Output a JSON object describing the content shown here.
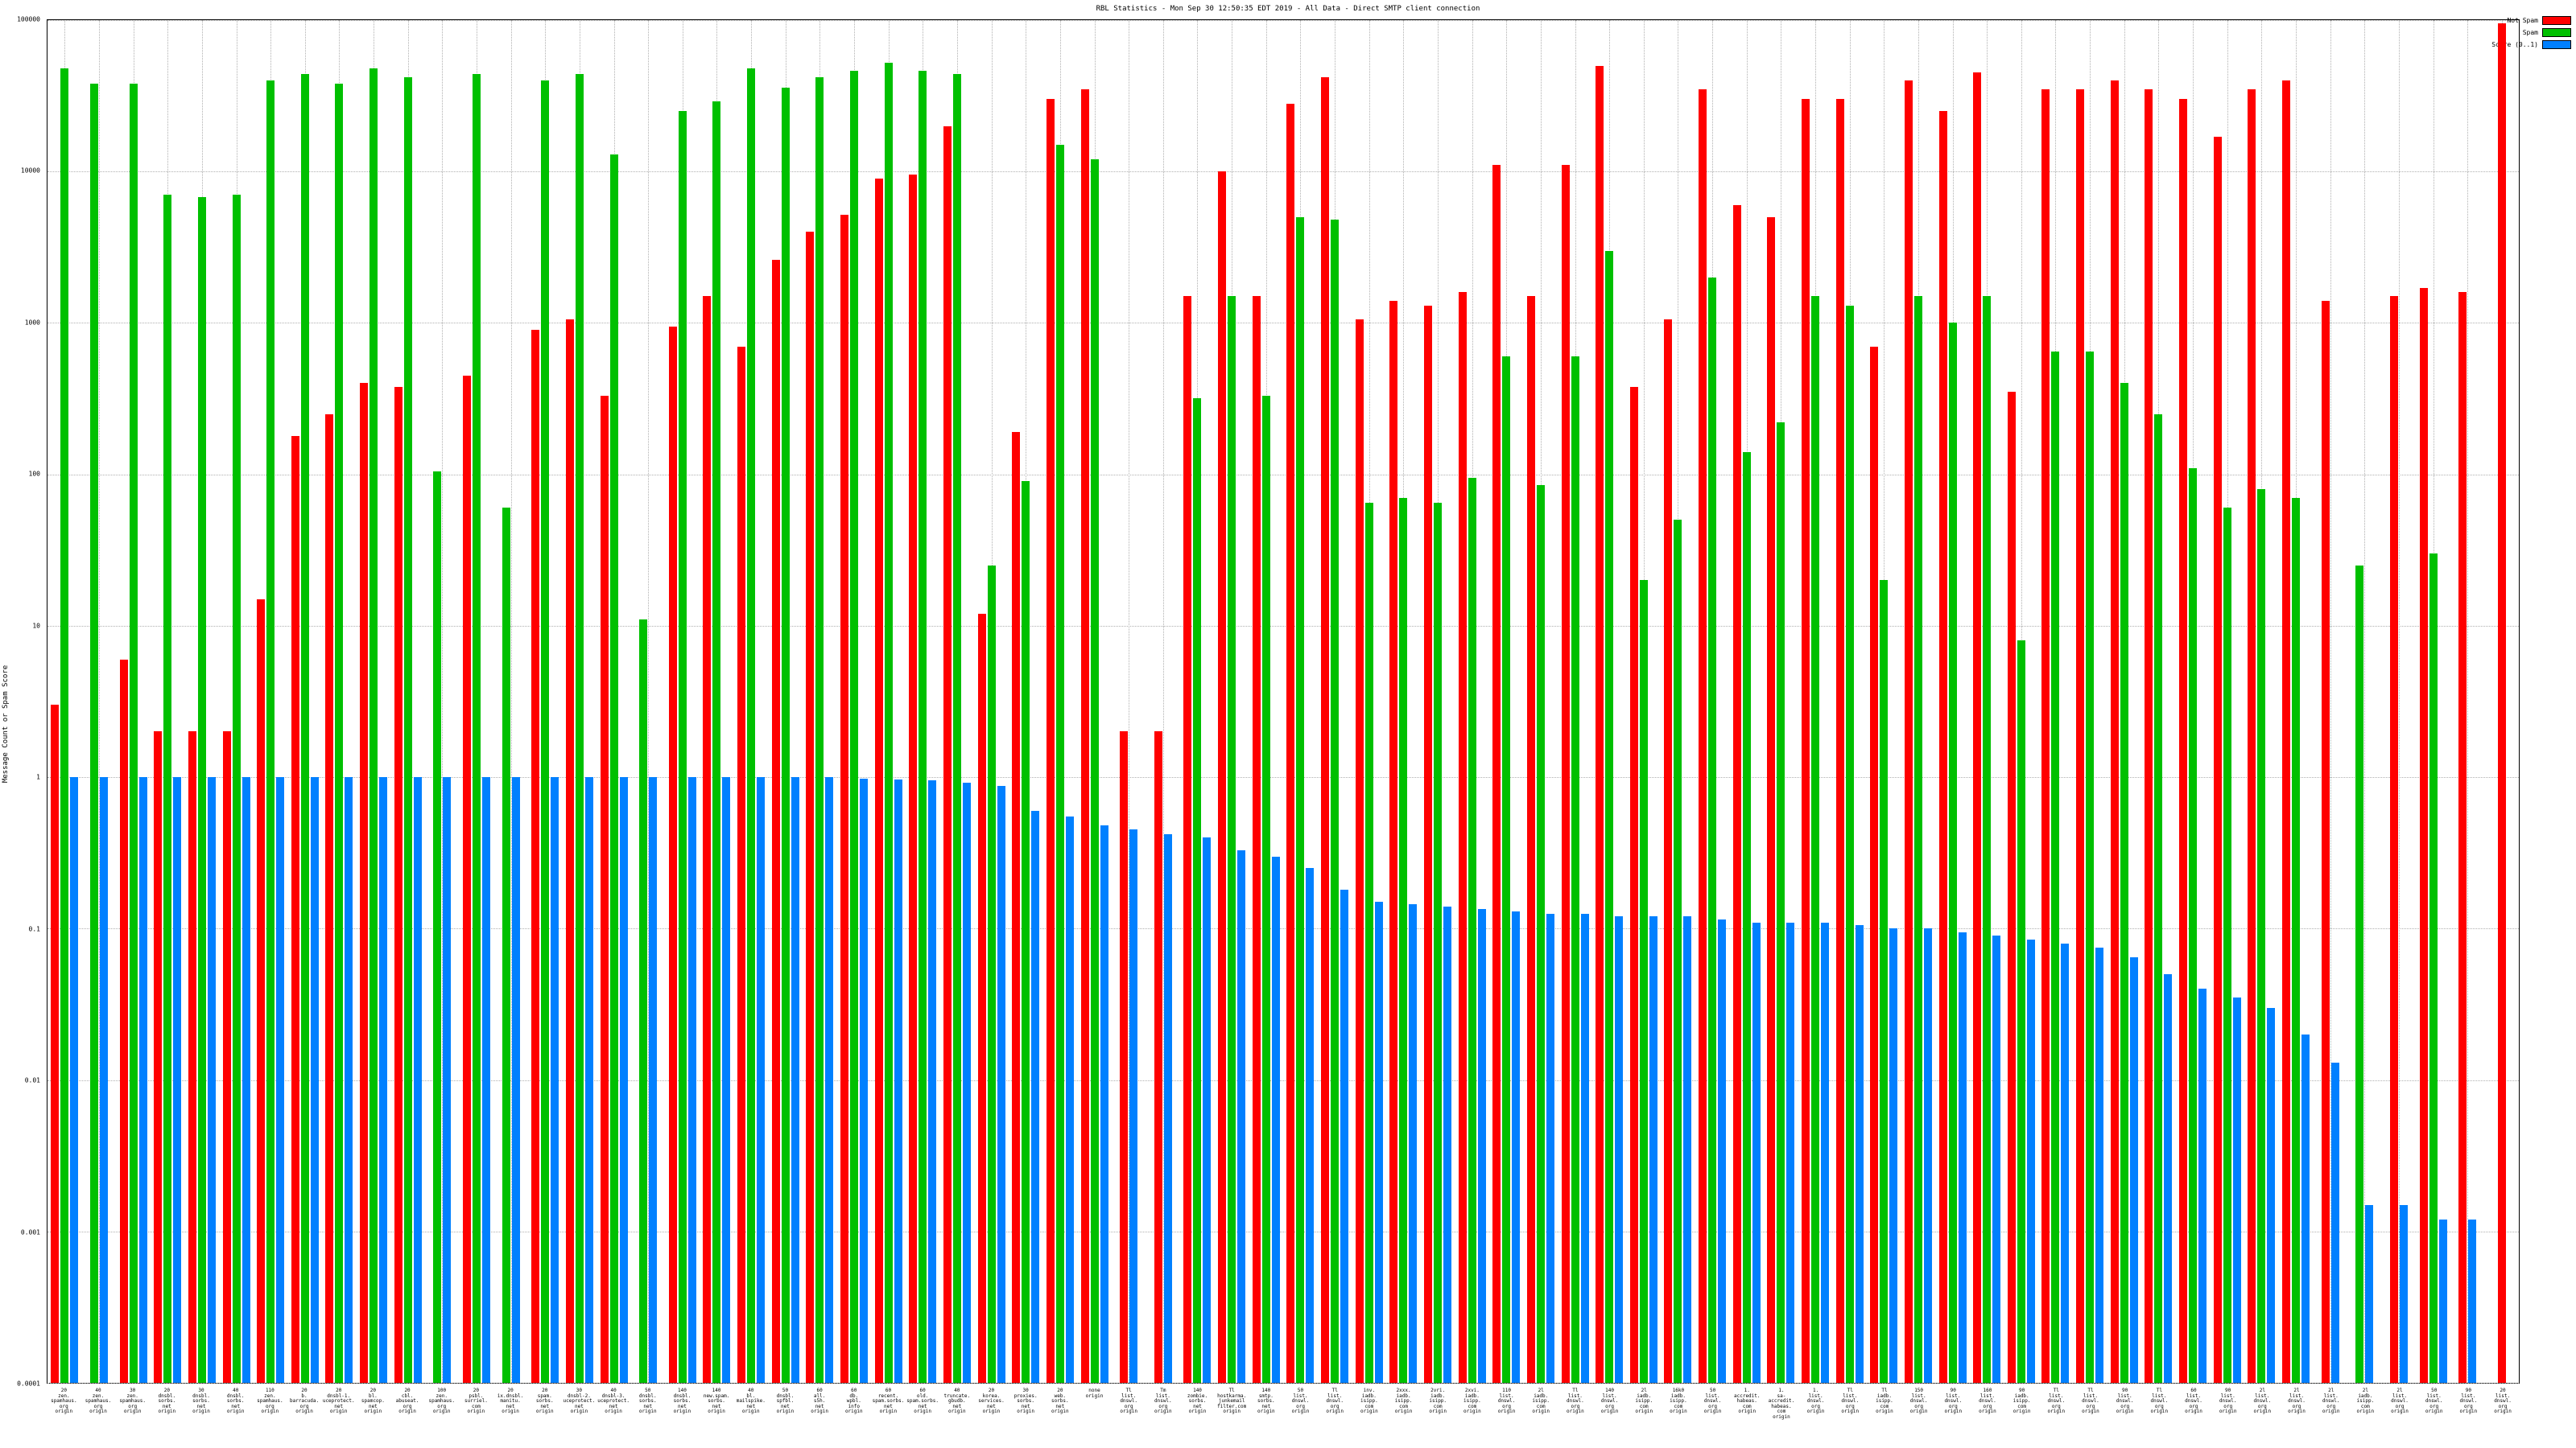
{
  "title": "RBL Statistics - Mon Sep 30 12:50:35 EDT 2019 - All Data - Direct SMTP client connection",
  "ylabel": "Message Count or Spam Score",
  "legend": [
    {
      "label": "Not Spam",
      "color": "#ff0000"
    },
    {
      "label": "Spam",
      "color": "#00c000"
    },
    {
      "label": "Score (0..1)",
      "color": "#0080ff"
    }
  ],
  "chart_data": {
    "type": "bar",
    "yscale": "log",
    "ylim": [
      0.0001,
      100000
    ],
    "yticks": [
      "100000",
      "10000",
      "1000",
      "100",
      "10",
      "1",
      "0.1",
      "0.01",
      "0.001",
      "0.0001"
    ],
    "grid": true,
    "legend_position": "top-right",
    "title": "RBL Statistics - Mon Sep 30 12:50:35 EDT 2019 - All Data - Direct SMTP client connection",
    "xlabel": "",
    "ylabel": "Message Count or Spam Score",
    "categories": [
      "20\nzen.\nspamhaus.\norg\norigin",
      "40\nzen.\nspamhaus.\norg\norigin",
      "30\nzen.\nspamhaus.\norg\norigin",
      "20\ndnsbl.\nsorbs.\nnet\norigin",
      "30\ndnsbl.\nsorbs.\nnet\norigin",
      "40\ndnsbl.\nsorbs.\nnet\norigin",
      "110\nzen.\nspamhaus.\norg\norigin",
      "20\nb.\nbarracuda.\norg\norigin",
      "20\ndnsbl-1.\nuceprotect.\nnet\norigin",
      "20\nbl.\nspamcop.\nnet\norigin",
      "20\ncbl.\nabuseat.\norg\norigin",
      "100\nzen.\nspamhaus.\norg\norigin",
      "20\npsbl.\nsurriel.\ncom\norigin",
      "20\nix.dnsbl.\nmanitu.\nnet\norigin",
      "20\nspam.\nsorbs.\nnet\norigin",
      "30\ndnsbl-2.\nuceprotect.\nnet\norigin",
      "40\ndnsbl-3.\nuceprotect.\nnet\norigin",
      "50\ndnsbl.\nsorbs.\nnet\norigin",
      "140\ndnsbl.\nsorbs.\nnet\norigin",
      "140\nnew.spam.\nsorbs.\nnet\norigin",
      "40\nbl.\nmailspike.\nnet\norigin",
      "50\ndnsbl.\nspfbl.\nnet\norigin",
      "60\nall.\ns5h.\nnet\norigin",
      "60\ndb.\nwpbl.\ninfo\norigin",
      "60\nrecent.\nspam.sorbs.\nnet\norigin",
      "60\nold.\nspam.sorbs.\nnet\norigin",
      "40\ntruncate.\ngbudb.\nnet\norigin",
      "20\nkorea.\nservices.\nnet\norigin",
      "30\nproxies.\nsorbs.\nnet\norigin",
      "20\nweb.\nsorbs.\nnet\norigin",
      "none\norigin",
      "Tl\nlist.\ndnswl.\norg\norigin",
      "Tm\nlist.\ndnswl.\norg\norigin",
      "140\nzombie.\nsorbs.\nnet\norigin",
      "Tl\nhostkarma.\njunkemail\nfilter.com\norigin",
      "140\nsmtp.\nsorbs.\nnet\norigin",
      "50\nlist.\ndnswl.\norg\norigin",
      "Tl\nlist.\ndnswl.\norg\norigin",
      "inv.\niadb.\nisipp.\ncom\norigin",
      "2xxx.\niadb.\nisipp.\ncom\norigin",
      "2vri.\niadb.\nisipp.\ncom\norigin",
      "2xvi.\niadb.\nisipp.\ncom\norigin",
      "110\nlist.\ndnswl.\norg\norigin",
      "2l\niadb.\nisipp.\ncom\norigin",
      "Tl\nlist.\ndnswl.\norg\norigin",
      "140\nlist.\ndnswl.\norg\norigin",
      "2l\niadb.\nisipp.\ncom\norigin",
      "16k0\niadb.\nisipp.\ncom\norigin",
      "50\nlist.\ndnswl.\norg\norigin",
      "1.\naccredit.\nhabeas.\ncom\norigin",
      "1.\nsa-accredit.\nhabeas.\ncom\norigin",
      "1.\nlist.\ndnswl.\norg\norigin",
      "Tl\nlist.\ndnswl.\norg\norigin",
      "Tl\niadb.\nisipp.\ncom\norigin",
      "150\nlist.\ndnswl.\norg\norigin",
      "90\nlist.\ndnswl.\norg\norigin",
      "160\nlist.\ndnswl.\norg\norigin",
      "90\niadb.\nisipp.\ncom\norigin",
      "Tl\nlist.\ndnswl.\norg\norigin",
      "Tl\nlist.\ndnswl.\norg\norigin",
      "90\nlist.\ndnswl.\norg\norigin",
      "Tl\nlist.\ndnswl.\norg\norigin",
      "60\nlist.\ndnswl.\norg\norigin",
      "90\nlist.\ndnswl.\norg\norigin",
      "2l\nlist.\ndnswl.\norg\norigin",
      "2l\nlist.\ndnswl.\norg\norigin",
      "2l\nlist.\ndnswl.\norg\norigin",
      "2l\niadb.\nisipp.\ncom\norigin",
      "2l\nlist.\ndnswl.\norg\norigin",
      "50\nlist.\ndnswl.\norg\norigin",
      "90\nlist.\ndnswl.\norg\norigin",
      "20\nlist.\ndnswl.\norg\norigin"
    ],
    "series": [
      {
        "name": "Not Spam",
        "color": "#ff0000",
        "values": [
          3,
          0,
          6,
          2,
          2,
          2,
          15,
          180,
          250,
          400,
          380,
          0,
          450,
          0,
          900,
          1050,
          330,
          0,
          950,
          1500,
          700,
          2600,
          4000,
          5200,
          9000,
          9500,
          20000,
          12,
          190,
          30000,
          35000,
          2,
          2,
          1500,
          10000,
          1500,
          28000,
          42000,
          1050,
          1400,
          1300,
          1600,
          11000,
          1500,
          11000,
          50000,
          380,
          1050,
          35000,
          6000,
          5000,
          30000,
          30000,
          700,
          40000,
          25000,
          45000,
          350,
          35000,
          35000,
          40000,
          35000,
          30000,
          17000,
          35000,
          40000,
          1400,
          0,
          1500,
          1700,
          1600,
          95000
        ]
      },
      {
        "name": "Spam",
        "color": "#00c000",
        "values": [
          48000,
          38000,
          38000,
          7000,
          6800,
          7000,
          40000,
          44000,
          38000,
          48000,
          42000,
          105,
          44000,
          60,
          40000,
          44000,
          13000,
          11,
          25000,
          29000,
          48000,
          36000,
          42000,
          46000,
          52000,
          46000,
          44000,
          25,
          90,
          15000,
          12000,
          0,
          0,
          320,
          1500,
          330,
          5000,
          4800,
          65,
          70,
          65,
          95,
          600,
          85,
          600,
          3000,
          20,
          50,
          2000,
          140,
          220,
          1500,
          1300,
          20,
          1500,
          1000,
          1500,
          8,
          650,
          650,
          400,
          250,
          110,
          60,
          80,
          70,
          0,
          25,
          0,
          30,
          0,
          0
        ]
      },
      {
        "name": "Score (0..1)",
        "color": "#0080ff",
        "values": [
          1,
          1,
          1,
          1,
          1,
          1,
          1,
          1,
          1,
          1,
          1,
          1,
          1,
          1,
          1,
          1,
          1,
          1,
          1,
          1,
          1,
          1,
          1,
          0.98,
          0.97,
          0.95,
          0.92,
          0.88,
          0.6,
          0.55,
          0.48,
          0.45,
          0.42,
          0.4,
          0.33,
          0.3,
          0.25,
          0.18,
          0.15,
          0.145,
          0.14,
          0.135,
          0.13,
          0.125,
          0.125,
          0.12,
          0.12,
          0.12,
          0.115,
          0.11,
          0.11,
          0.11,
          0.105,
          0.1,
          0.1,
          0.095,
          0.09,
          0.085,
          0.08,
          0.075,
          0.065,
          0.05,
          0.04,
          0.035,
          0.03,
          0.02,
          0.013,
          0.0015,
          0.0015,
          0.0012,
          0.0012,
          0
        ]
      }
    ]
  }
}
